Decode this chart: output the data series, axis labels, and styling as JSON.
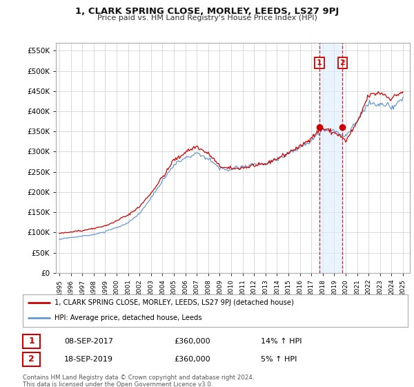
{
  "title": "1, CLARK SPRING CLOSE, MORLEY, LEEDS, LS27 9PJ",
  "subtitle": "Price paid vs. HM Land Registry's House Price Index (HPI)",
  "ylabel_ticks": [
    "£0",
    "£50K",
    "£100K",
    "£150K",
    "£200K",
    "£250K",
    "£300K",
    "£350K",
    "£400K",
    "£450K",
    "£500K",
    "£550K"
  ],
  "ytick_values": [
    0,
    50000,
    100000,
    150000,
    200000,
    250000,
    300000,
    350000,
    400000,
    450000,
    500000,
    550000
  ],
  "ylim": [
    0,
    570000
  ],
  "red_line_color": "#cc0000",
  "blue_line_color": "#6699cc",
  "shade_color": "#ddeeff",
  "marker_color": "#cc0000",
  "ann1_x": 2017.708,
  "ann1_y": 360000,
  "ann2_x": 2019.708,
  "ann2_y": 360000,
  "ann1_label": "1",
  "ann2_label": "2",
  "ann1_date": "08-SEP-2017",
  "ann1_price": "£360,000",
  "ann1_hpi": "14% ↑ HPI",
  "ann2_date": "18-SEP-2019",
  "ann2_price": "£360,000",
  "ann2_hpi": "5% ↑ HPI",
  "legend_line1": "1, CLARK SPRING CLOSE, MORLEY, LEEDS, LS27 9PJ (detached house)",
  "legend_line2": "HPI: Average price, detached house, Leeds",
  "footnote": "Contains HM Land Registry data © Crown copyright and database right 2024.\nThis data is licensed under the Open Government Licence v3.0.",
  "background_color": "#ffffff",
  "grid_color": "#cccccc",
  "xlim_left": 1994.7,
  "xlim_right": 2025.6
}
